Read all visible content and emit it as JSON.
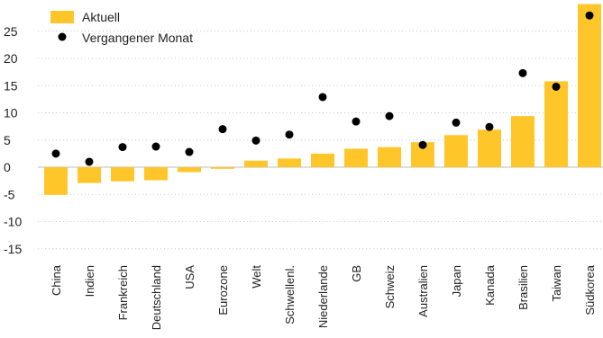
{
  "chart_data": {
    "type": "bar",
    "title": "",
    "xlabel": "",
    "ylabel": "",
    "categories": [
      "China",
      "Indien",
      "Frankreich",
      "Deutschland",
      "USA",
      "Eurozone",
      "Welt",
      "Schwellenl.",
      "Niederlande",
      "GB",
      "Schweiz",
      "Australien",
      "Japan",
      "Kanada",
      "Brasilien",
      "Taiwan",
      "Südkorea"
    ],
    "series": [
      {
        "name": "Aktuell",
        "kind": "bar",
        "color": "#FFC629",
        "values": [
          -5.1,
          -2.9,
          -2.6,
          -2.4,
          -0.9,
          -0.3,
          1.2,
          1.6,
          2.5,
          3.4,
          3.7,
          4.6,
          5.9,
          6.9,
          9.4,
          15.8,
          30.0
        ]
      },
      {
        "name": "Vergangener Monat",
        "kind": "point",
        "color": "#000000",
        "values": [
          2.5,
          1.0,
          3.7,
          3.8,
          2.8,
          7.0,
          4.9,
          6.0,
          12.9,
          8.4,
          9.4,
          4.1,
          8.2,
          7.4,
          17.3,
          14.8,
          27.9
        ]
      }
    ],
    "yticks": [
      -15,
      -10,
      -5,
      0,
      5,
      10,
      15,
      20,
      25
    ],
    "ylim": [
      -18,
      30
    ],
    "grid": true,
    "legend_position": "top-left"
  }
}
